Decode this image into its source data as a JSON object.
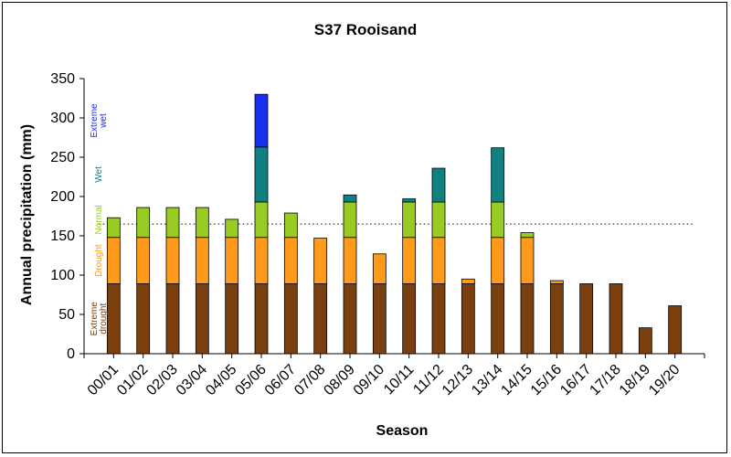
{
  "chart_data": {
    "type": "bar",
    "stacked": true,
    "title": "S37 Rooisand",
    "xlabel": "Season",
    "ylabel": "Annual precipitation (mm)",
    "ylim": [
      0,
      350
    ],
    "yticks": [
      0,
      50,
      100,
      150,
      200,
      250,
      300,
      350
    ],
    "categories": [
      "00/01",
      "01/02",
      "02/03",
      "03/04",
      "04/05",
      "05/06",
      "06/07",
      "07/08",
      "08/09",
      "09/10",
      "10/11",
      "11/12",
      "12/13",
      "13/14",
      "14/15",
      "15/16",
      "16/17",
      "17/18",
      "18/19",
      "19/20"
    ],
    "values": [
      173,
      186,
      186,
      186,
      171,
      330,
      179,
      147,
      202,
      127,
      197,
      236,
      95,
      262,
      154,
      93,
      89,
      89,
      33,
      61
    ],
    "thresholds": [
      89,
      148,
      193,
      263
    ],
    "reference_line": 165,
    "bands": [
      {
        "name": "Extreme drought",
        "color": "#7a4010"
      },
      {
        "name": "Drought",
        "color": "#ff9a1a"
      },
      {
        "name": "Normal",
        "color": "#99cc22"
      },
      {
        "name": "Wet",
        "color": "#118080"
      },
      {
        "name": "Extreme wet",
        "color": "#1a2ef0"
      }
    ],
    "band_labels": [
      {
        "lines": [
          "Extreme",
          "drought"
        ],
        "color": "#7a4010"
      },
      {
        "lines": [
          "Drought"
        ],
        "color": "#ff9a1a"
      },
      {
        "lines": [
          "Normal"
        ],
        "color": "#99cc22"
      },
      {
        "lines": [
          "Wet"
        ],
        "color": "#118080"
      },
      {
        "lines": [
          "Extreme",
          "wet"
        ],
        "color": "#1a2ef0"
      }
    ],
    "grid": false,
    "legend": "none"
  }
}
